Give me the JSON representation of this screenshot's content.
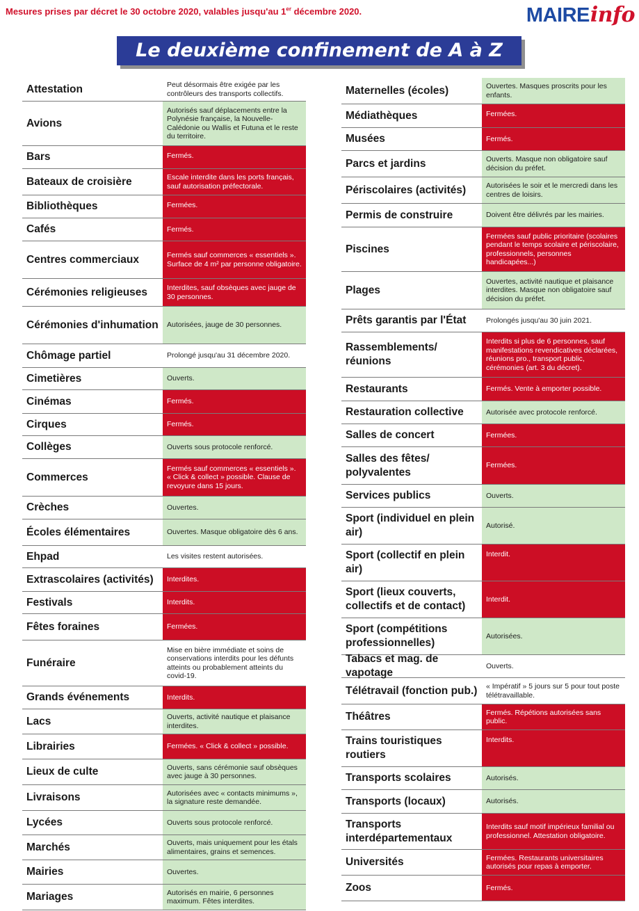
{
  "header": {
    "decree_text_pre": "Mesures prises par décret le 30 octobre 2020, valables jusqu'au 1",
    "decree_sup": "er",
    "decree_text_post": " décembre 2020.",
    "logo_maire": "MAIRE",
    "logo_info": "info",
    "title": "Le deuxième confinement de A à Z"
  },
  "colors": {
    "green": "#cfe8c8",
    "red": "#cc0e25",
    "title_bg": "#2b3c97",
    "decree_red": "#d0112b",
    "logo_blue": "#1d4aa3"
  },
  "left": [
    {
      "label": "Attestation",
      "text": "Peut désormais être exigée par les contrôleurs des transports collectifs.",
      "status": "white",
      "h": 34
    },
    {
      "label": "Avions",
      "text": "Autorisés sauf déplacements entre la Polynésie française, la Nouvelle-Calédonie ou Wallis et Futuna et le reste du territoire.",
      "status": "green",
      "h": 64
    },
    {
      "label": "Bars",
      "text": "Fermés.",
      "status": "red",
      "h": 33,
      "top": true
    },
    {
      "label": "Bateaux de croisière",
      "text": "Escale interdite dans les ports français, sauf autorisation préfectorale.",
      "status": "red",
      "h": 38
    },
    {
      "label": "Bibliothèques",
      "text": "Fermées.",
      "status": "red",
      "h": 33,
      "top": true
    },
    {
      "label": "Cafés",
      "text": "Fermés.",
      "status": "red",
      "h": 33
    },
    {
      "label": "Centres commerciaux",
      "text": "Fermés sauf commerces « essentiels ». Surface de 4 m² par personne obligatoire.",
      "status": "red",
      "h": 54
    },
    {
      "label": "Cérémonies religieuses",
      "text": "Interdites, sauf obsèques avec jauge de 30 personnes.",
      "status": "red",
      "h": 40
    },
    {
      "label": "Cérémonies d'inhumation",
      "text": "Autorisées, jauge de 30 personnes.",
      "status": "green",
      "h": 54
    },
    {
      "label": "Chômage partiel",
      "text": "Prolongé jusqu'au 31 décembre 2020.",
      "status": "white",
      "h": 34
    },
    {
      "label": "Cimetières",
      "text": "Ouverts.",
      "status": "green",
      "h": 32
    },
    {
      "label": "Cinémas",
      "text": "Fermés.",
      "status": "red",
      "h": 34
    },
    {
      "label": "Cirques",
      "text": "Fermés.",
      "status": "red",
      "h": 32
    },
    {
      "label": "Collèges",
      "text": "Ouverts sous protocole renforcé.",
      "status": "green",
      "h": 33
    },
    {
      "label": "Commerces",
      "text": "Fermés sauf commerces « essentiels ». « Click & collect » possible. Clause de revoyure dans 15 jours.",
      "status": "red",
      "h": 54
    },
    {
      "label": "Crèches",
      "text": "Ouvertes.",
      "status": "green",
      "h": 33
    },
    {
      "label": "Écoles élémentaires",
      "text": "Ouvertes. Masque obligatoire dès 6 ans.",
      "status": "green",
      "h": 38
    },
    {
      "label": "Ehpad",
      "text": "Les visites restent autorisées.",
      "status": "white",
      "h": 32
    },
    {
      "label": "Extrascolaires (activités)",
      "text": "Interdites.",
      "status": "red",
      "h": 34
    },
    {
      "label": "Festivals",
      "text": "Interdits.",
      "status": "red",
      "h": 32
    },
    {
      "label": "Fêtes foraines",
      "text": "Fermées.",
      "status": "red",
      "h": 38
    },
    {
      "label": "Funéraire",
      "text": "Mise en bière immédiate et soins de conservations interdits pour les défunts atteints ou probablement atteints du covid-19.",
      "status": "white",
      "h": 66
    },
    {
      "label": "Grands événements",
      "text": "Interdits.",
      "status": "red",
      "h": 33
    },
    {
      "label": "Lacs",
      "text": "Ouverts, activité nautique et plaisance interdites.",
      "status": "green",
      "h": 36
    },
    {
      "label": "Librairies",
      "text": "Fermées. « Click & collect » possible.",
      "status": "red",
      "h": 36
    },
    {
      "label": "Lieux de culte",
      "text": "Ouverts, sans cérémonie sauf obsèques avec jauge à 30 personnes.",
      "status": "green",
      "h": 37
    },
    {
      "label": "Livraisons",
      "text": "Autorisées avec « contacts minimums », la signature reste demandée.",
      "status": "green",
      "h": 37
    },
    {
      "label": "Lycées",
      "text": "Ouverts sous protocole renforcé.",
      "status": "green",
      "h": 35
    },
    {
      "label": "Marchés",
      "text": "Ouverts, mais uniquement pour les étals alimentaires, grains et semences.",
      "status": "green",
      "h": 36
    },
    {
      "label": "Mairies",
      "text": "Ouvertes.",
      "status": "green",
      "h": 35
    },
    {
      "label": "Mariages",
      "text": "Autorisés en mairie, 6 personnes maximum. Fêtes interdites.",
      "status": "green",
      "h": 37
    }
  ],
  "right": [
    {
      "label": "Maternelles (écoles)",
      "text": "Ouvertes. Masques proscrits pour les enfants.",
      "status": "green",
      "h": 38
    },
    {
      "label": "Médiathèques",
      "text": "Fermées.",
      "status": "red",
      "h": 34,
      "top": true
    },
    {
      "label": "Musées",
      "text": "Fermés.",
      "status": "red",
      "h": 33
    },
    {
      "label": "Parcs et jardins",
      "text": "Ouverts. Masque non obligatoire sauf décision du préfet.",
      "status": "green",
      "h": 38
    },
    {
      "label": "Périscolaires (activités)",
      "text": "Autorisées le soir et le mercredi dans les centres de loisirs.",
      "status": "green",
      "h": 38
    },
    {
      "label": "Permis de construire",
      "text": "Doivent être délivrés par les mairies.",
      "status": "green",
      "h": 34
    },
    {
      "label": "Piscines",
      "text": "Fermées sauf public prioritaire (scolaires pendant le temps scolaire et périscolaire, professionnels, personnes handicapées...)",
      "status": "red",
      "h": 64
    },
    {
      "label": "Plages",
      "text": "Ouvertes, activité nautique et plaisance interdites. Masque non obligatoire sauf décision du préfet.",
      "status": "green",
      "h": 54
    },
    {
      "label": "Prêts garantis par l'État",
      "text": "Prolongés jusqu'au 30 juin 2021.",
      "status": "white",
      "h": 33
    },
    {
      "label": "Rassemblements/ réunions",
      "text": "Interdits si plus de 6 personnes, sauf manifestations revendicatives déclarées, réunions pro., transport public, cérémonies (art. 3 du décret).",
      "status": "red",
      "h": 65
    },
    {
      "label": "Restaurants",
      "text": "Fermés. Vente à emporter possible.",
      "status": "red",
      "h": 34
    },
    {
      "label": "Restauration collective",
      "text": "Autorisée avec protocole renforcé.",
      "status": "green",
      "h": 33
    },
    {
      "label": "Salles de concert",
      "text": "Fermées.",
      "status": "red",
      "h": 33
    },
    {
      "label": "Salles des fêtes/ polyvalentes",
      "text": "Fermées.",
      "status": "red",
      "h": 54
    },
    {
      "label": "Services publics",
      "text": "Ouverts.",
      "status": "green",
      "h": 33
    },
    {
      "label": "Sport (individuel en plein air)",
      "text": "Autorisé.",
      "status": "green",
      "h": 53
    },
    {
      "label": "Sport (collectif en plein air)",
      "text": "Interdit.",
      "status": "red",
      "h": 53,
      "top": true
    },
    {
      "label": "Sport (lieux couverts, collectifs et de contact)",
      "text": "Interdit.",
      "status": "red",
      "h": 53
    },
    {
      "label": "Sport (compétitions professionnelles)",
      "text": "Autorisées.",
      "status": "green",
      "h": 53
    },
    {
      "label": "Tabacs et mag. de vapotage",
      "text": "Ouverts.",
      "status": "white",
      "h": 33
    },
    {
      "label": "Télétravail (fonction pub.)",
      "text": "« Impératif » 5 jours sur 5 pour tout poste télétravaillable.",
      "status": "white",
      "h": 38
    },
    {
      "label": "Théâtres",
      "text": "Fermés. Répétions autorisées sans public.",
      "status": "red",
      "h": 37
    },
    {
      "label": "Trains touristiques routiers",
      "text": "Interdits.",
      "status": "red",
      "h": 53,
      "top": true
    },
    {
      "label": "Transports scolaires",
      "text": "Autorisés.",
      "status": "green",
      "h": 33
    },
    {
      "label": "Transports (locaux)",
      "text": "Autorisés.",
      "status": "green",
      "h": 34
    },
    {
      "label": "Transports interdépartementaux",
      "text": "Interdits sauf motif impérieux familial ou professionnel. Attestation obligatoire.",
      "status": "red",
      "h": 52
    },
    {
      "label": "Universités",
      "text": "Fermées. Restaurants universitaires autorisés pour repas à emporter.",
      "status": "red",
      "h": 37
    },
    {
      "label": "Zoos",
      "text": "Fermés.",
      "status": "red",
      "h": 37
    }
  ]
}
